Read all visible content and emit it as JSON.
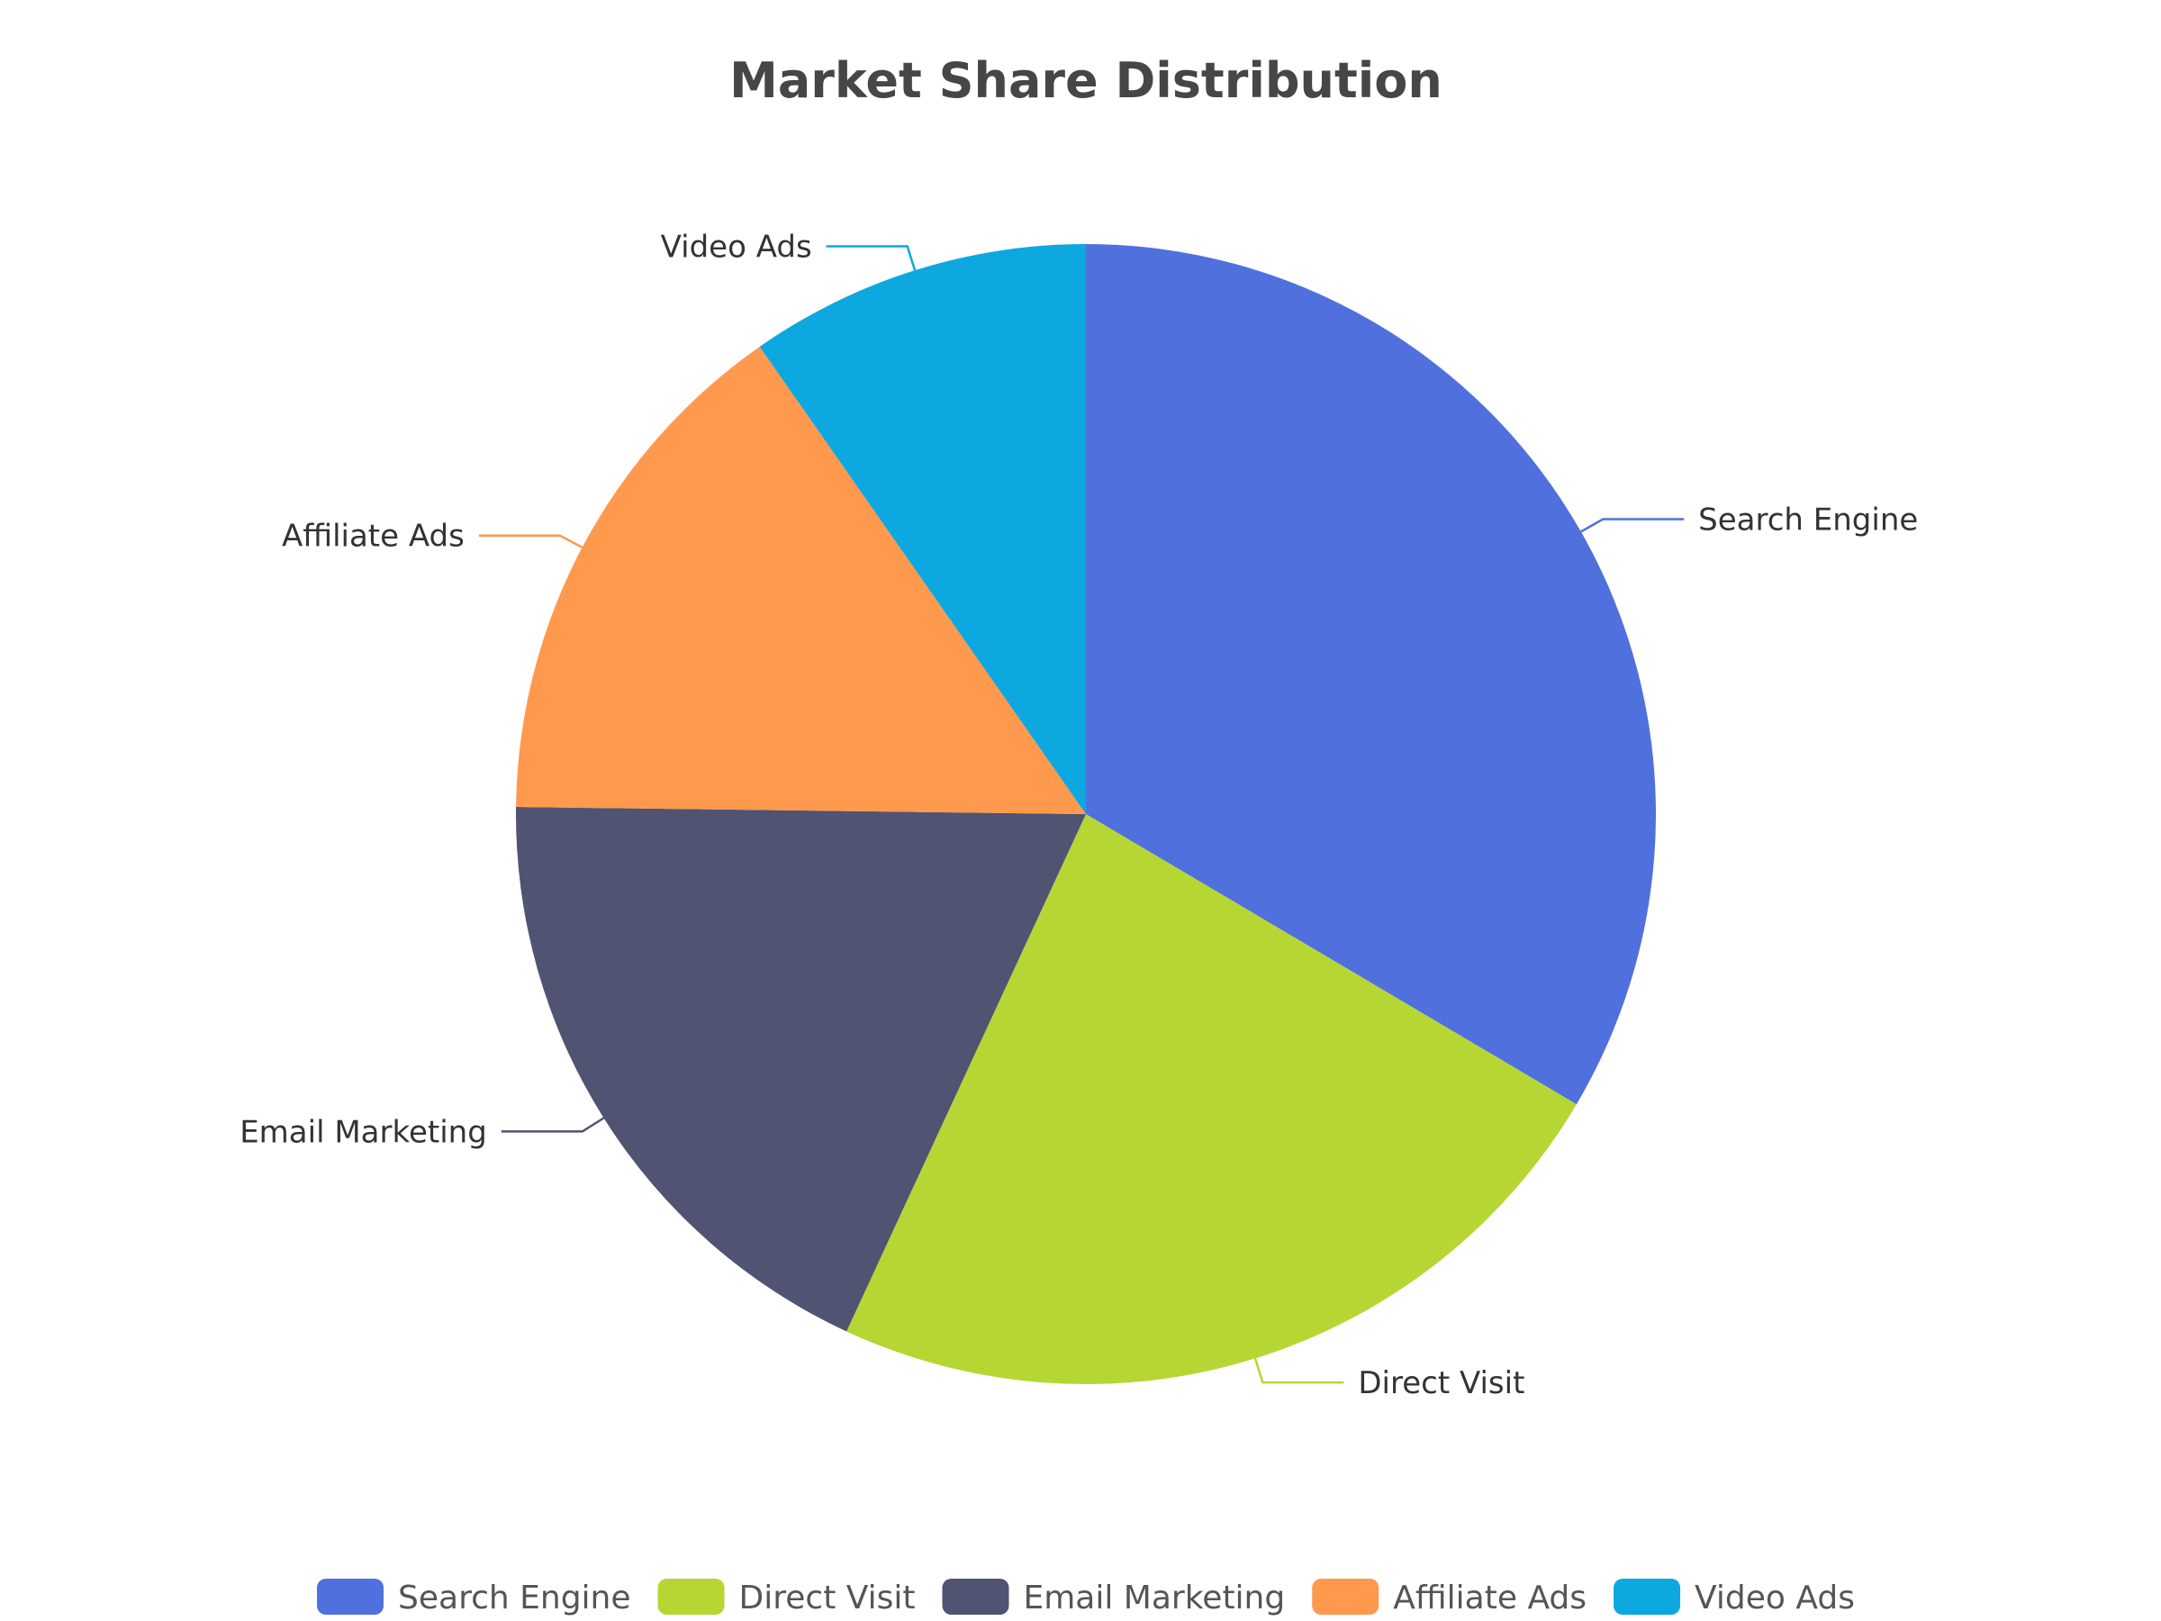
{
  "chart_data": {
    "type": "pie",
    "title": "Market Share Distribution",
    "categories": [
      "Search Engine",
      "Direct Visit",
      "Email Marketing",
      "Affiliate Ads",
      "Video Ads"
    ],
    "values": [
      33.5,
      23.4,
      18.3,
      15.1,
      9.7
    ],
    "colors": [
      "#5070dd",
      "#b6d634",
      "#505372",
      "#ff994d",
      "#0ca8df"
    ],
    "legend_position": "bottom",
    "start_angle_deg": 0,
    "direction": "clockwise"
  }
}
